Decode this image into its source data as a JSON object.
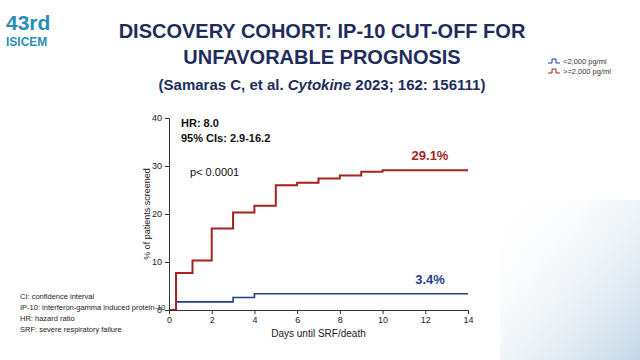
{
  "logo": [
    "43rd",
    "ISICEM"
  ],
  "footnotes": [
    "CI: confidence interval",
    "IP-10: interferon-gamma induced protein-10",
    "HR: hazard ratio",
    "SRF: severe respiratory failure"
  ],
  "chart_data": {
    "type": "line",
    "title": [
      "DISCOVERY COHORT: IP-10 CUT-OFF FOR",
      "UNFAVORABLE PROGNOSIS"
    ],
    "subtitle": [
      "(Samaras C, et al. ",
      "Cytokine",
      " 2023; 162: 156111)"
    ],
    "x_label": "Days until SRF/death",
    "y_label": "% of patients screened",
    "annotations": [
      "HR: 8.0",
      "95% CIs: 2.9-16.2",
      "p< 0.0001"
    ],
    "xlim": [
      0,
      14
    ],
    "xticks": [
      0,
      2,
      4,
      6,
      8,
      10,
      12,
      14
    ],
    "ylim": [
      0,
      40
    ],
    "yticks": [
      0,
      10,
      20,
      30,
      40
    ],
    "line_style": "step",
    "legend": "top-right",
    "data_labels": true,
    "series": [
      {
        "name": "<2,000 pg/ml",
        "color": "#1f3f8f",
        "x": [
          0,
          0.33,
          3,
          4,
          14
        ],
        "values": [
          0,
          1.7,
          2.6,
          3.4,
          3.4
        ],
        "value_labels": [
          null,
          null,
          null,
          null,
          "3.4%"
        ]
      },
      {
        "name": ">=2,000 pg/ml",
        "color": "#a3231f",
        "x": [
          0,
          0.33,
          1.1,
          2,
          3,
          4,
          5,
          6,
          7,
          8,
          9,
          10,
          14
        ],
        "values": [
          0,
          7.7,
          10.3,
          17,
          20.3,
          21.7,
          26,
          26.5,
          27.4,
          28,
          28.8,
          29.1,
          29.1
        ],
        "value_labels": [
          null,
          null,
          null,
          null,
          null,
          null,
          null,
          null,
          null,
          null,
          null,
          null,
          "29.1%"
        ]
      }
    ]
  }
}
